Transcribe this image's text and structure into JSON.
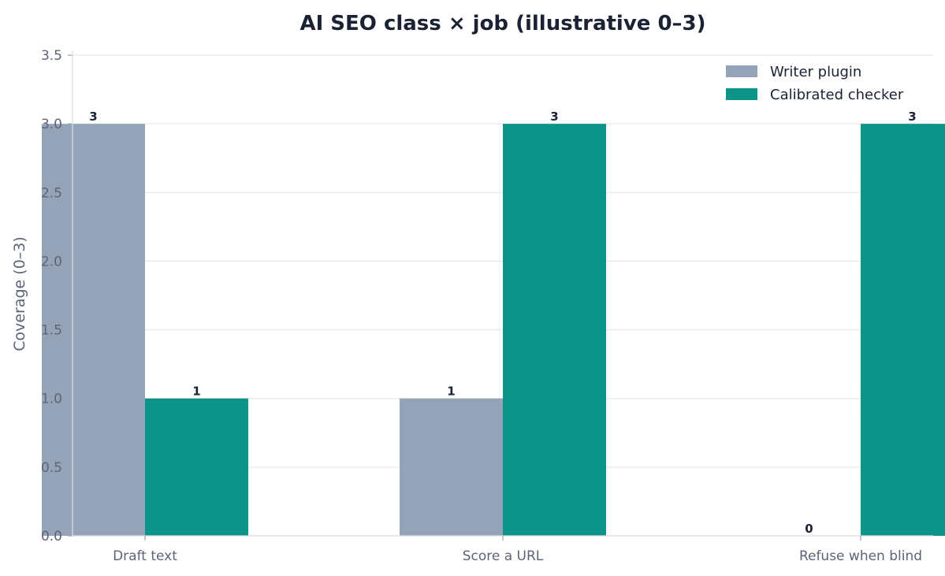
{
  "chart_data": {
    "type": "bar",
    "title": "AI SEO class × job (illustrative 0–3)",
    "xlabel": "",
    "ylabel": "Coverage (0–3)",
    "categories": [
      "Draft text",
      "Score a URL",
      "Refuse when blind"
    ],
    "series": [
      {
        "name": "Writer plugin",
        "values": [
          3,
          1,
          0
        ],
        "color": "#94a3b8"
      },
      {
        "name": "Calibrated checker",
        "values": [
          1,
          3,
          3
        ],
        "color": "#0d9488"
      }
    ],
    "ylim": [
      0,
      3.5
    ],
    "yticks": [
      "0.0",
      "0.5",
      "1.0",
      "1.5",
      "2.0",
      "2.5",
      "3.0",
      "3.5"
    ],
    "grid": true,
    "legend": "top-right"
  }
}
